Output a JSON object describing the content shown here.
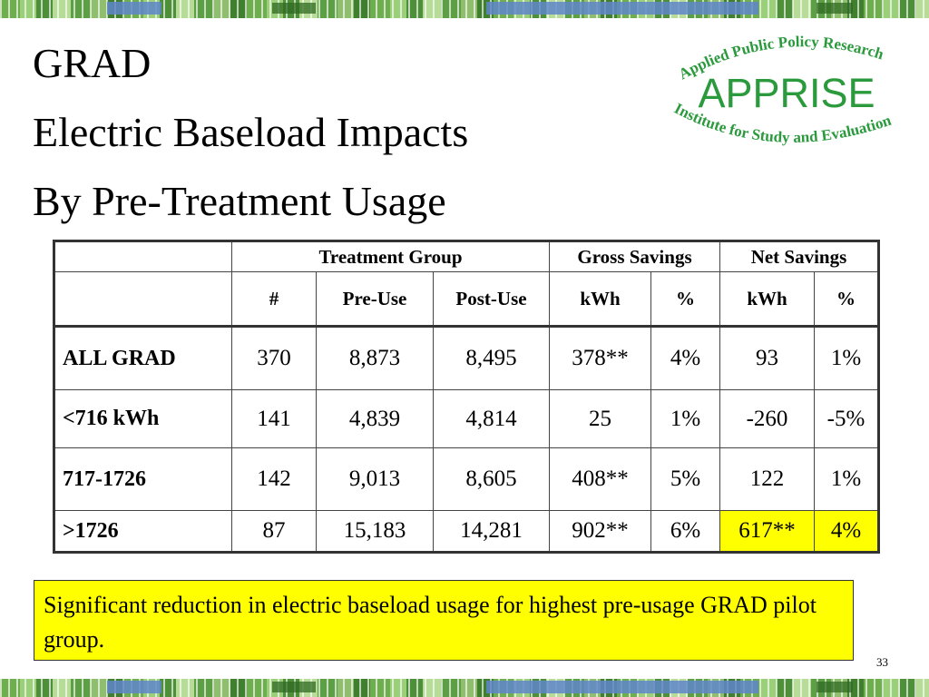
{
  "title": {
    "line1": "GRAD",
    "line2": "Electric Baseload Impacts",
    "line3": "By Pre-Treatment Usage"
  },
  "logo": {
    "top_text": "Applied Public Policy Research",
    "name": "APPRISE",
    "bottom_text": "Institute for Study and Evaluation",
    "color": "#2a9a3c"
  },
  "table": {
    "group_headers": {
      "treatment_group": "Treatment Group",
      "gross_savings": "Gross Savings",
      "net_savings": "Net Savings"
    },
    "column_headers": {
      "count": "#",
      "pre_use": "Pre-Use",
      "post_use": "Post-Use",
      "gross_kwh": "kWh",
      "gross_pct": "%",
      "net_kwh": "kWh",
      "net_pct": "%"
    },
    "rows": [
      {
        "label": "ALL GRAD",
        "count": "370",
        "pre_use": "8,873",
        "post_use": "8,495",
        "gross_kwh": "378**",
        "gross_pct": "4%",
        "net_kwh": "93",
        "net_pct": "1%"
      },
      {
        "label": "<716 kWh",
        "count": "141",
        "pre_use": "4,839",
        "post_use": "4,814",
        "gross_kwh": "25",
        "gross_pct": "1%",
        "net_kwh": "-260",
        "net_pct": "-5%"
      },
      {
        "label": "717-1726",
        "count": "142",
        "pre_use": "9,013",
        "post_use": "8,605",
        "gross_kwh": "408**",
        "gross_pct": "5%",
        "net_kwh": "122",
        "net_pct": "1%"
      },
      {
        "label": ">1726",
        "count": "87",
        "pre_use": "15,183",
        "post_use": "14,281",
        "gross_kwh": "902**",
        "gross_pct": "6%",
        "net_kwh": "617**",
        "net_pct": "4%"
      }
    ],
    "highlight_color": "#ffff00"
  },
  "callout": {
    "text": "Significant reduction in electric baseload usage for highest pre-usage GRAD pilot group.",
    "background": "#ffff00"
  },
  "slide_number": "33"
}
